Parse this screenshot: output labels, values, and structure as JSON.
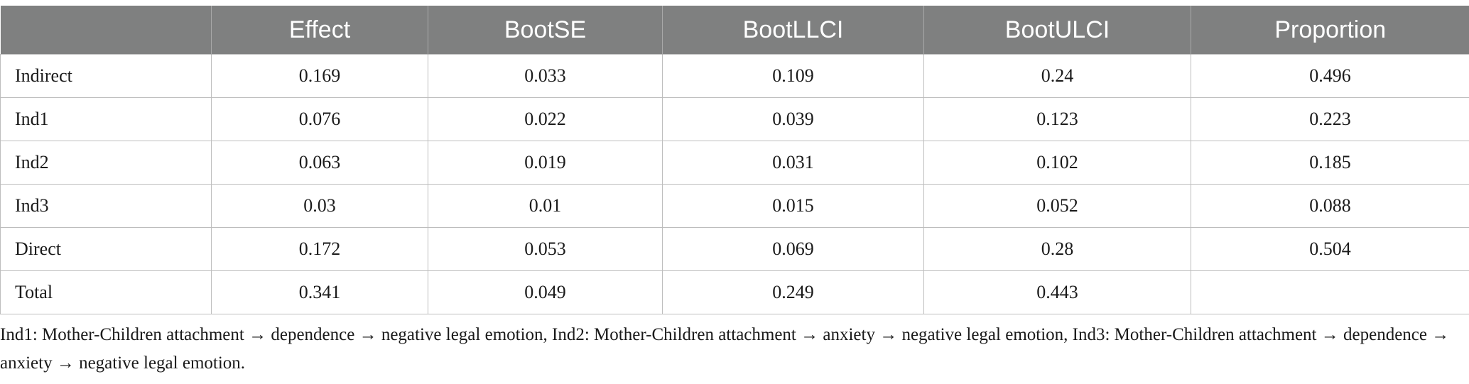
{
  "table": {
    "headers": [
      "",
      "Effect",
      "BootSE",
      "BootLLCI",
      "BootULCI",
      "Proportion"
    ],
    "rows": [
      [
        "Indirect",
        "0.169",
        "0.033",
        "0.109",
        "0.24",
        "0.496"
      ],
      [
        "Ind1",
        "0.076",
        "0.022",
        "0.039",
        "0.123",
        "0.223"
      ],
      [
        "Ind2",
        "0.063",
        "0.019",
        "0.031",
        "0.102",
        "0.185"
      ],
      [
        "Ind3",
        "0.03",
        "0.01",
        "0.015",
        "0.052",
        "0.088"
      ],
      [
        "Direct",
        "0.172",
        "0.053",
        "0.069",
        "0.28",
        "0.504"
      ],
      [
        "Total",
        "0.341",
        "0.049",
        "0.249",
        "0.443",
        ""
      ]
    ]
  },
  "note": "Ind1: Mother-Children attachment → dependence → negative legal emotion, Ind2: Mother-Children attachment → anxiety → negative legal emotion, Ind3: Mother-Children attachment → dependence → anxiety → negative legal emotion.",
  "colors": {
    "header_background": "#7f8080",
    "header_text": "#ffffff",
    "border": "#bdbdbd"
  }
}
